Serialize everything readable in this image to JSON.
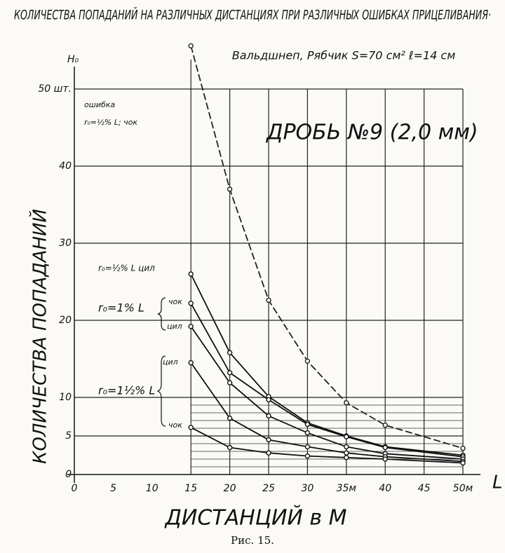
{
  "chart_data": {
    "type": "line",
    "title": "КОЛИЧЕСТВА ПОПАДАНИЙ НА РАЗЛИЧНЫХ ДИСТАНЦИЯХ ПРИ РАЗЛИЧНЫХ ОШИБКАХ ПРИЦЕЛИВАНИЯ·",
    "subtitle": "Вальдшнеп, Рябчик S=70 см² ℓ=14 см",
    "caption": "Рис. 15.",
    "x_label": "ДИСТАНЦИЙ в М",
    "y_label": "КОЛИЧЕСТВА ПОПАДАНИЙ",
    "x_unit": "L",
    "y_unit": "Н₀",
    "annotations": [
      "ДРОБЬ №9 (2,0 мм)",
      "ошибка",
      "r₀=1% L",
      "r₀=1½% L"
    ],
    "x": [
      15,
      20,
      25,
      30,
      35,
      40,
      50
    ],
    "series": [
      {
        "name": "r₀=½% L; чок",
        "color": "#222",
        "dashed": true,
        "values": [
          55.6,
          37,
          22.6,
          14.7,
          9.3,
          6.4,
          3.4
        ]
      },
      {
        "name": "r₀=½% L цил",
        "color": "#111",
        "values": [
          26,
          15.8,
          10.1,
          6.7,
          5,
          3.6,
          2.5
        ]
      },
      {
        "name": "чок",
        "color": "#111",
        "values": [
          22.2,
          13.2,
          9.7,
          6.5,
          4.9,
          3.5,
          2.3
        ]
      },
      {
        "name": "цил",
        "color": "#111",
        "values": [
          19.2,
          11.9,
          7.6,
          5.4,
          3.6,
          2.7,
          2
        ]
      },
      {
        "name": "цил",
        "color": "#111",
        "values": [
          14.5,
          7.3,
          4.5,
          3.6,
          2.8,
          2.3,
          1.7
        ]
      },
      {
        "name": "чок",
        "color": "#111",
        "values": [
          6.1,
          3.5,
          2.8,
          2.4,
          2.2,
          2,
          1.5
        ]
      }
    ],
    "xlim": [
      0,
      50
    ],
    "ylim": [
      0,
      52
    ],
    "xticks": [
      0,
      5,
      10,
      15,
      20,
      25,
      30,
      {
        "value": 35,
        "label": "35м"
      },
      40,
      45,
      {
        "value": 50,
        "label": "50м"
      }
    ],
    "yticks": [
      0,
      5,
      10,
      20,
      30,
      40,
      {
        "value": 50,
        "label": "50 шт."
      }
    ],
    "minor_yticks": [
      1,
      2,
      3,
      4,
      6,
      7,
      8,
      9
    ],
    "grid": true
  }
}
